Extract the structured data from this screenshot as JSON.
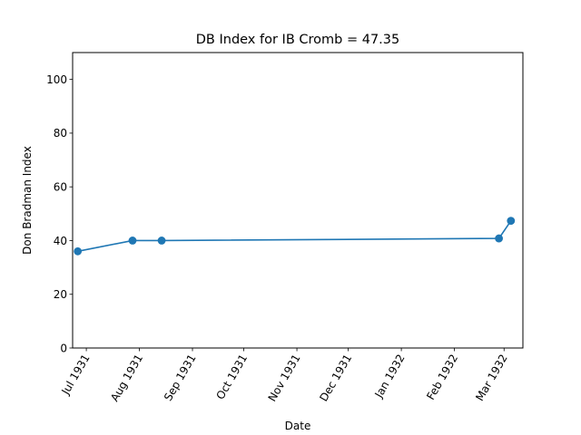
{
  "chart_data": {
    "type": "line",
    "title": "DB Index for IB Cromb = 47.35",
    "xlabel": "Date",
    "ylabel": "Don Bradman Index",
    "xlim": [
      "1931-06-23",
      "1932-03-12"
    ],
    "ylim": [
      0,
      110
    ],
    "x_ticks": [
      {
        "date": "1931-07-01",
        "label": "Jul 1931"
      },
      {
        "date": "1931-08-01",
        "label": "Aug 1931"
      },
      {
        "date": "1931-09-01",
        "label": "Sep 1931"
      },
      {
        "date": "1931-10-01",
        "label": "Oct 1931"
      },
      {
        "date": "1931-11-01",
        "label": "Nov 1931"
      },
      {
        "date": "1931-12-01",
        "label": "Dec 1931"
      },
      {
        "date": "1932-01-01",
        "label": "Jan 1932"
      },
      {
        "date": "1932-02-01",
        "label": "Feb 1932"
      },
      {
        "date": "1932-03-01",
        "label": "Mar 1932"
      }
    ],
    "y_ticks": [
      0,
      20,
      40,
      60,
      80,
      100
    ],
    "grid": false,
    "series": [
      {
        "color": "#1f77b4",
        "marker": "circle",
        "points": [
          {
            "x": "1931-06-26",
            "y": 36.0
          },
          {
            "x": "1931-07-28",
            "y": 40.0
          },
          {
            "x": "1931-08-14",
            "y": 40.0
          },
          {
            "x": "1932-02-27",
            "y": 40.8
          },
          {
            "x": "1932-03-05",
            "y": 47.35
          }
        ]
      }
    ]
  }
}
